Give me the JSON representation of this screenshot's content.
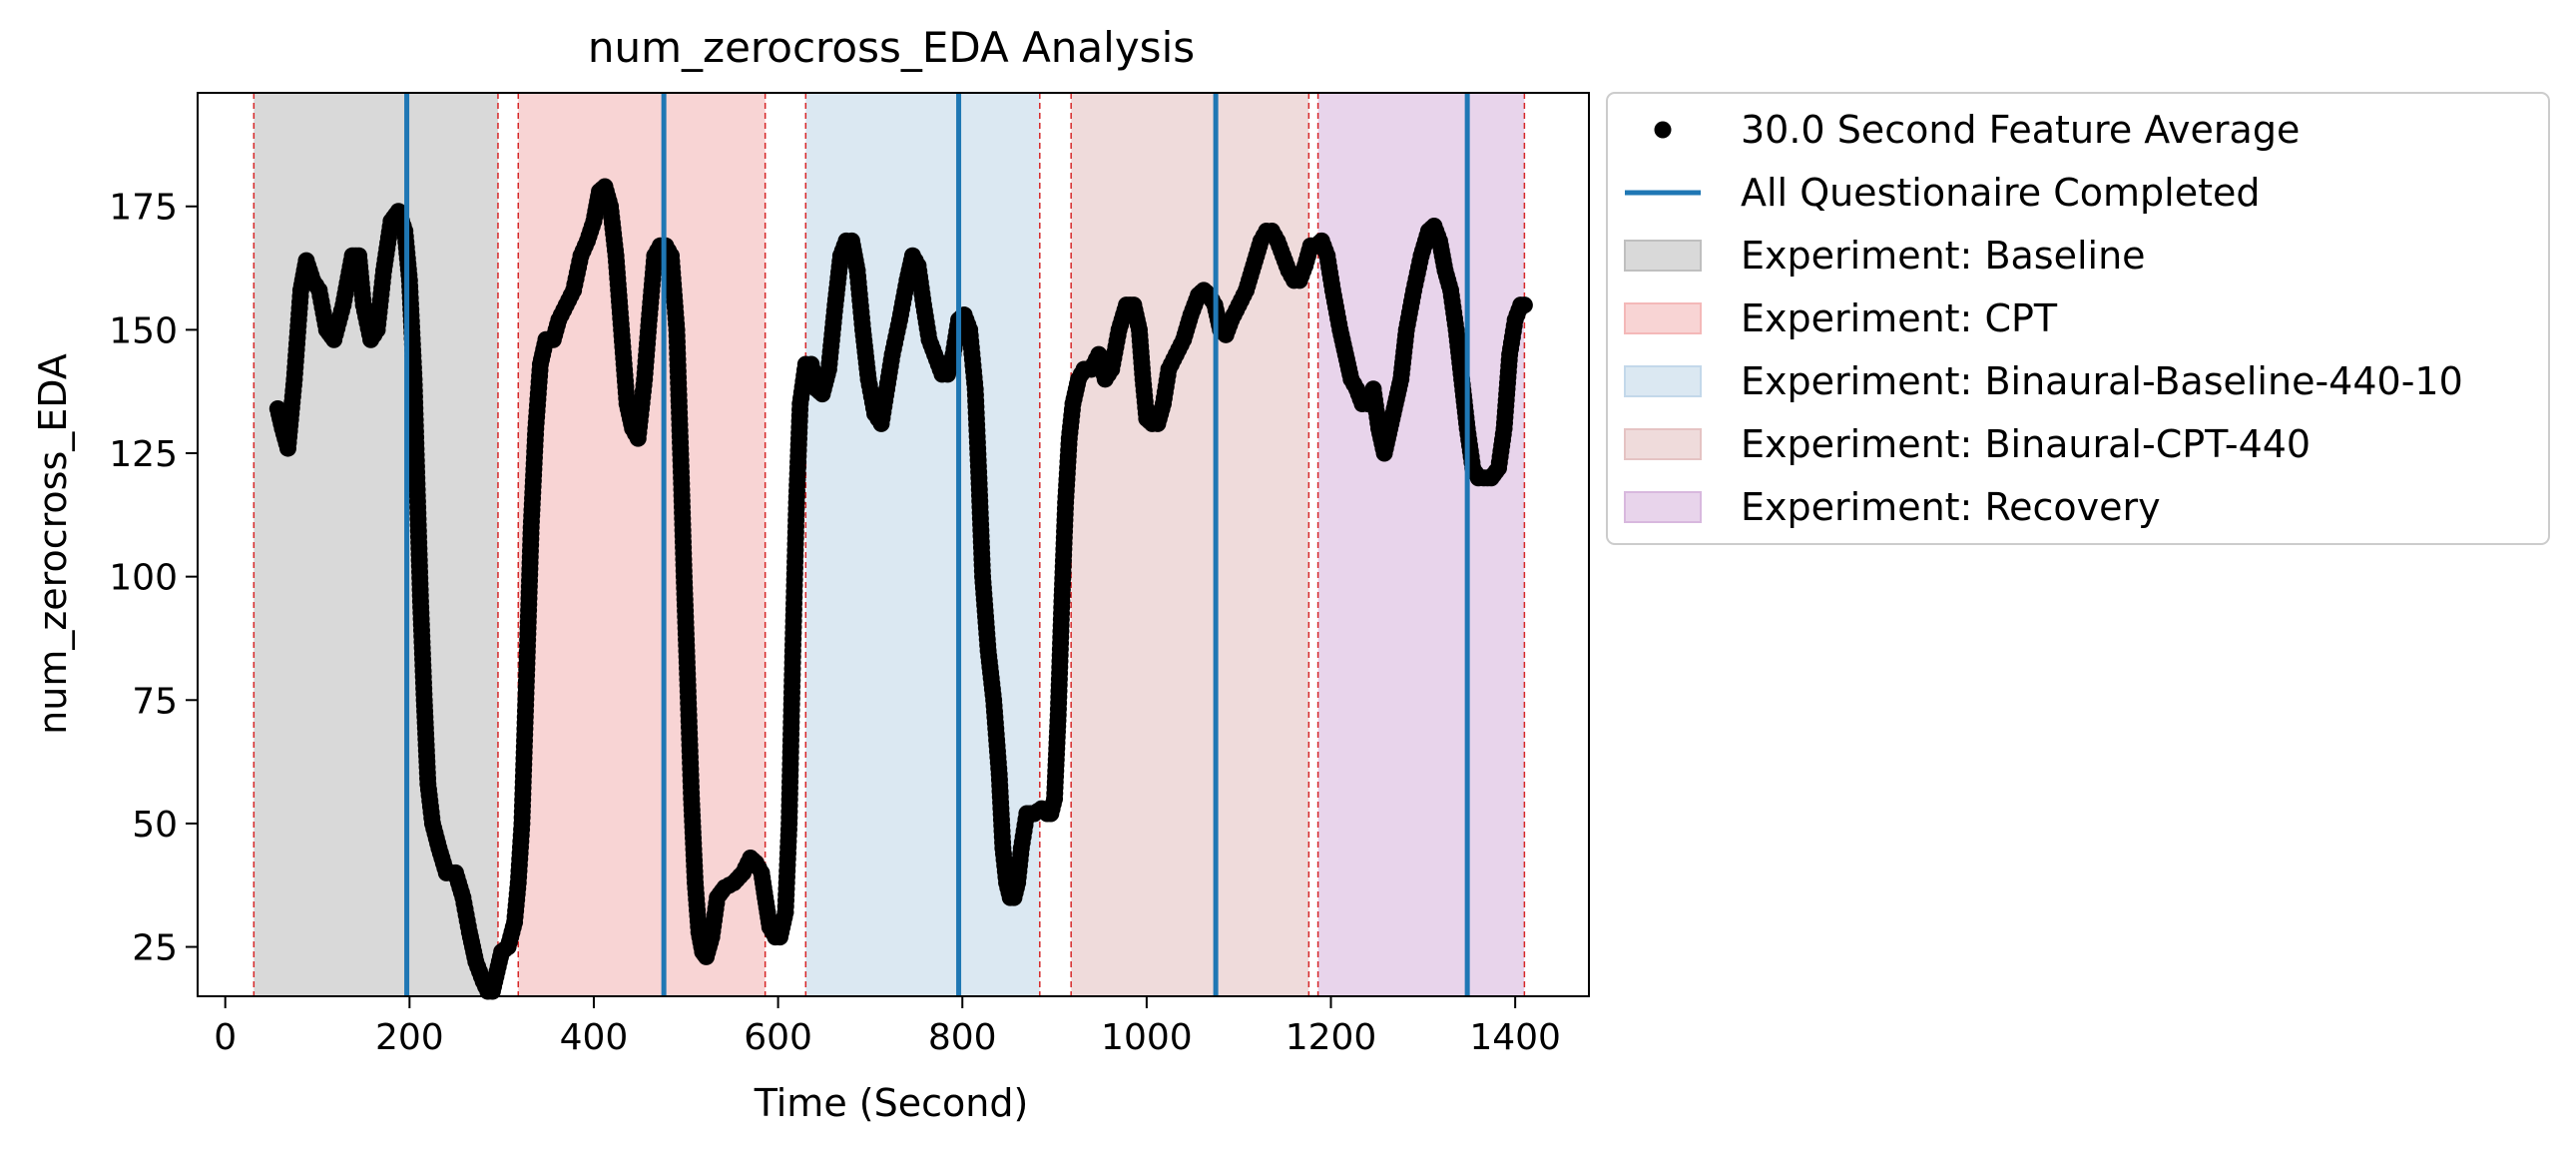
{
  "chart_data": {
    "type": "scatter",
    "title": "num_zerocross_EDA Analysis",
    "xlabel": "Time (Second)",
    "ylabel": "num_zerocross_EDA",
    "xlim": [
      -30,
      1480
    ],
    "ylim": [
      15,
      198
    ],
    "x_ticks": [
      0,
      200,
      400,
      600,
      800,
      1000,
      1200,
      1400
    ],
    "y_ticks": [
      25,
      50,
      75,
      100,
      125,
      150,
      175
    ],
    "grid": false,
    "legend_position": "outside-right",
    "series": [
      {
        "name": "30.0 Second Feature Average",
        "marker": "circle",
        "color": "#000000",
        "keypoints": [
          [
            57,
            134
          ],
          [
            62,
            130
          ],
          [
            68,
            126
          ],
          [
            75,
            140
          ],
          [
            82,
            158
          ],
          [
            88,
            164
          ],
          [
            95,
            160
          ],
          [
            102,
            158
          ],
          [
            110,
            150
          ],
          [
            118,
            148
          ],
          [
            128,
            155
          ],
          [
            138,
            165
          ],
          [
            145,
            165
          ],
          [
            150,
            155
          ],
          [
            158,
            148
          ],
          [
            165,
            150
          ],
          [
            172,
            162
          ],
          [
            180,
            172
          ],
          [
            188,
            174
          ],
          [
            195,
            170
          ],
          [
            200,
            160
          ],
          [
            205,
            140
          ],
          [
            208,
            120
          ],
          [
            212,
            95
          ],
          [
            216,
            75
          ],
          [
            220,
            58
          ],
          [
            225,
            50
          ],
          [
            232,
            45
          ],
          [
            240,
            40
          ],
          [
            250,
            40
          ],
          [
            258,
            35
          ],
          [
            265,
            28
          ],
          [
            272,
            22
          ],
          [
            280,
            18
          ],
          [
            285,
            16
          ],
          [
            290,
            16
          ],
          [
            295,
            20
          ],
          [
            300,
            24
          ],
          [
            307,
            25
          ],
          [
            314,
            30
          ],
          [
            318,
            38
          ],
          [
            322,
            50
          ],
          [
            327,
            80
          ],
          [
            332,
            110
          ],
          [
            337,
            130
          ],
          [
            342,
            143
          ],
          [
            348,
            148
          ],
          [
            356,
            148
          ],
          [
            362,
            152
          ],
          [
            370,
            155
          ],
          [
            378,
            158
          ],
          [
            386,
            165
          ],
          [
            393,
            168
          ],
          [
            400,
            172
          ],
          [
            406,
            178
          ],
          [
            412,
            179
          ],
          [
            418,
            175
          ],
          [
            424,
            165
          ],
          [
            430,
            150
          ],
          [
            436,
            135
          ],
          [
            442,
            130
          ],
          [
            448,
            128
          ],
          [
            455,
            140
          ],
          [
            460,
            152
          ],
          [
            466,
            165
          ],
          [
            472,
            167
          ],
          [
            478,
            167
          ],
          [
            484,
            165
          ],
          [
            490,
            150
          ],
          [
            495,
            120
          ],
          [
            498,
            100
          ],
          [
            502,
            78
          ],
          [
            506,
            55
          ],
          [
            510,
            38
          ],
          [
            514,
            28
          ],
          [
            518,
            24
          ],
          [
            522,
            23
          ],
          [
            528,
            27
          ],
          [
            534,
            35
          ],
          [
            542,
            37
          ],
          [
            552,
            38
          ],
          [
            562,
            40
          ],
          [
            570,
            43
          ],
          [
            576,
            42
          ],
          [
            582,
            40
          ],
          [
            586,
            35
          ],
          [
            591,
            29
          ],
          [
            597,
            27
          ],
          [
            602,
            27
          ],
          [
            608,
            32
          ],
          [
            612,
            50
          ],
          [
            616,
            85
          ],
          [
            620,
            115
          ],
          [
            624,
            135
          ],
          [
            630,
            143
          ],
          [
            636,
            143
          ],
          [
            642,
            138
          ],
          [
            648,
            137
          ],
          [
            655,
            142
          ],
          [
            662,
            155
          ],
          [
            668,
            165
          ],
          [
            674,
            168
          ],
          [
            680,
            168
          ],
          [
            686,
            162
          ],
          [
            692,
            150
          ],
          [
            698,
            140
          ],
          [
            705,
            133
          ],
          [
            712,
            131
          ],
          [
            718,
            138
          ],
          [
            724,
            145
          ],
          [
            732,
            152
          ],
          [
            740,
            160
          ],
          [
            746,
            165
          ],
          [
            752,
            163
          ],
          [
            758,
            155
          ],
          [
            764,
            148
          ],
          [
            770,
            145
          ],
          [
            778,
            141
          ],
          [
            784,
            141
          ],
          [
            790,
            145
          ],
          [
            796,
            152
          ],
          [
            802,
            153
          ],
          [
            808,
            150
          ],
          [
            814,
            138
          ],
          [
            818,
            120
          ],
          [
            822,
            100
          ],
          [
            828,
            85
          ],
          [
            834,
            75
          ],
          [
            840,
            60
          ],
          [
            844,
            45
          ],
          [
            848,
            38
          ],
          [
            852,
            35
          ],
          [
            856,
            35
          ],
          [
            860,
            38
          ],
          [
            864,
            45
          ],
          [
            870,
            52
          ],
          [
            878,
            52
          ],
          [
            886,
            53
          ],
          [
            892,
            52
          ],
          [
            896,
            52
          ],
          [
            900,
            55
          ],
          [
            904,
            72
          ],
          [
            908,
            95
          ],
          [
            912,
            115
          ],
          [
            916,
            128
          ],
          [
            920,
            135
          ],
          [
            926,
            140
          ],
          [
            932,
            142
          ],
          [
            940,
            142
          ],
          [
            948,
            145
          ],
          [
            955,
            140
          ],
          [
            962,
            142
          ],
          [
            970,
            150
          ],
          [
            978,
            155
          ],
          [
            986,
            155
          ],
          [
            992,
            150
          ],
          [
            996,
            140
          ],
          [
            1000,
            132
          ],
          [
            1006,
            131
          ],
          [
            1012,
            131
          ],
          [
            1018,
            135
          ],
          [
            1024,
            142
          ],
          [
            1032,
            145
          ],
          [
            1040,
            148
          ],
          [
            1048,
            153
          ],
          [
            1056,
            157
          ],
          [
            1062,
            158
          ],
          [
            1068,
            157
          ],
          [
            1074,
            155
          ],
          [
            1080,
            150
          ],
          [
            1086,
            149
          ],
          [
            1092,
            152
          ],
          [
            1100,
            155
          ],
          [
            1108,
            158
          ],
          [
            1116,
            163
          ],
          [
            1124,
            168
          ],
          [
            1130,
            170
          ],
          [
            1136,
            170
          ],
          [
            1142,
            168
          ],
          [
            1148,
            165
          ],
          [
            1154,
            162
          ],
          [
            1160,
            160
          ],
          [
            1166,
            160
          ],
          [
            1172,
            163
          ],
          [
            1178,
            167
          ],
          [
            1184,
            167
          ],
          [
            1190,
            168
          ],
          [
            1196,
            165
          ],
          [
            1202,
            158
          ],
          [
            1210,
            150
          ],
          [
            1216,
            145
          ],
          [
            1222,
            140
          ],
          [
            1228,
            138
          ],
          [
            1234,
            135
          ],
          [
            1240,
            135
          ],
          [
            1246,
            138
          ],
          [
            1252,
            130
          ],
          [
            1258,
            125
          ],
          [
            1264,
            130
          ],
          [
            1270,
            135
          ],
          [
            1276,
            140
          ],
          [
            1282,
            150
          ],
          [
            1290,
            158
          ],
          [
            1298,
            165
          ],
          [
            1306,
            170
          ],
          [
            1312,
            171
          ],
          [
            1318,
            168
          ],
          [
            1324,
            162
          ],
          [
            1330,
            158
          ],
          [
            1336,
            150
          ],
          [
            1342,
            140
          ],
          [
            1348,
            130
          ],
          [
            1354,
            122
          ],
          [
            1360,
            120
          ],
          [
            1366,
            120
          ],
          [
            1374,
            120
          ],
          [
            1382,
            122
          ],
          [
            1388,
            130
          ],
          [
            1394,
            145
          ],
          [
            1400,
            152
          ],
          [
            1406,
            155
          ],
          [
            1410,
            155
          ]
        ]
      },
      {
        "name": "All Questionaire Completed",
        "type": "vline",
        "color": "#1f77b4",
        "x": [
          197,
          476,
          796,
          1075,
          1348
        ]
      }
    ],
    "regions": [
      {
        "name": "Experiment: Baseline",
        "x0": 31,
        "x1": 296,
        "color": "#bfbfbf"
      },
      {
        "name": "Experiment: CPT",
        "x0": 318,
        "x1": 586,
        "color": "#f4b8b8"
      },
      {
        "name": "Experiment: Binaural-Baseline-440-10",
        "x0": 630,
        "x1": 884,
        "color": "#c3d8ea"
      },
      {
        "name": "Experiment: Binaural-CPT-440",
        "x0": 918,
        "x1": 1176,
        "color": "#e5c3c3"
      },
      {
        "name": "Experiment: Recovery",
        "x0": 1186,
        "x1": 1410,
        "color": "#d8b8de"
      }
    ],
    "region_boundaries": {
      "color": "#d62728",
      "x": [
        31,
        296,
        318,
        586,
        630,
        884,
        918,
        1176,
        1186,
        1410
      ]
    },
    "legend": [
      {
        "label": "30.0 Second Feature Average",
        "kind": "marker",
        "color": "#000000"
      },
      {
        "label": "All Questionaire Completed",
        "kind": "line",
        "color": "#1f77b4"
      },
      {
        "label": "Experiment: Baseline",
        "kind": "patch",
        "color": "#bfbfbf"
      },
      {
        "label": "Experiment: CPT",
        "kind": "patch",
        "color": "#f4b8b8"
      },
      {
        "label": "Experiment: Binaural-Baseline-440-10",
        "kind": "patch",
        "color": "#c3d8ea"
      },
      {
        "label": "Experiment: Binaural-CPT-440",
        "kind": "patch",
        "color": "#e5c3c3"
      },
      {
        "label": "Experiment: Recovery",
        "kind": "patch",
        "color": "#d8b8de"
      }
    ]
  }
}
